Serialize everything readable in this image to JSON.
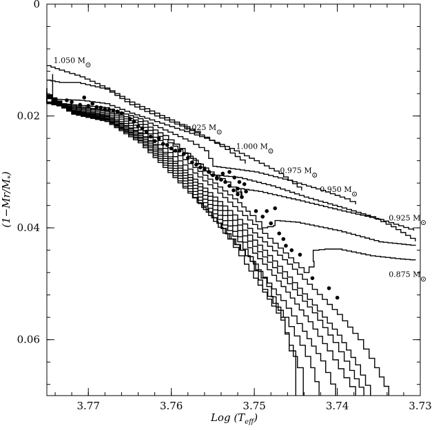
{
  "chart_data": {
    "type": "line",
    "xlabel": "Log  (T",
    "xlabel_sub": "eff",
    "xlabel_close": ")",
    "ylabel": "(1−Mr/M",
    "ylabel_sub": "*",
    "ylabel_close": ")",
    "xlim": [
      3.775,
      3.73
    ],
    "ylim": [
      0,
      0.07
    ],
    "x_major_ticks": [
      3.77,
      3.76,
      3.75,
      3.74,
      3.73
    ],
    "x_tick_labels": [
      "3.77",
      "3.76",
      "3.75",
      "3.74",
      "3.73"
    ],
    "y_major_ticks": [
      0,
      0.02,
      0.04,
      0.06
    ],
    "y_tick_labels": [
      "0",
      "0.02",
      "0.04",
      "0.06"
    ],
    "grid": false,
    "mass_labels": [
      {
        "text": "1.050 M",
        "x": 3.7742,
        "y": 0.0105
      },
      {
        "text": "1.025 M",
        "x": 3.7584,
        "y": 0.0225
      },
      {
        "text": "1.000 M",
        "x": 3.7522,
        "y": 0.0259
      },
      {
        "text": "0.975 M",
        "x": 3.7469,
        "y": 0.0302
      },
      {
        "text": "0.950 M",
        "x": 3.7421,
        "y": 0.0336
      },
      {
        "text": "0.925 M",
        "x": 3.7338,
        "y": 0.0387
      },
      {
        "text": "0.875 M",
        "x": 3.7338,
        "y": 0.0488
      }
    ],
    "series": [
      {
        "values": [
          [
            3.775,
            0.011
          ],
          [
            3.7735,
            0.0118
          ],
          [
            3.771,
            0.013
          ],
          [
            3.768,
            0.015
          ],
          [
            3.765,
            0.0175
          ],
          [
            3.762,
            0.0195
          ],
          [
            3.759,
            0.0215
          ],
          [
            3.7565,
            0.0232
          ]
        ]
      },
      {
        "values": [
          [
            3.775,
            0.0136
          ],
          [
            3.7735,
            0.014
          ],
          [
            3.7715,
            0.014
          ],
          [
            3.768,
            0.0152
          ],
          [
            3.765,
            0.018
          ],
          [
            3.762,
            0.02
          ],
          [
            3.759,
            0.0218
          ],
          [
            3.756,
            0.0238
          ],
          [
            3.7535,
            0.026
          ],
          [
            3.7511,
            0.0285
          ]
        ]
      },
      {
        "values": [
          [
            3.7743,
            0.0125
          ],
          [
            3.7743,
            0.017
          ],
          [
            3.771,
            0.0172
          ],
          [
            3.768,
            0.0178
          ],
          [
            3.765,
            0.0195
          ],
          [
            3.762,
            0.021
          ],
          [
            3.759,
            0.0225
          ],
          [
            3.756,
            0.024
          ],
          [
            3.753,
            0.0258
          ],
          [
            3.75,
            0.028
          ],
          [
            3.747,
            0.0303
          ],
          [
            3.7443,
            0.0333
          ]
        ]
      },
      {
        "values": [
          [
            3.775,
            0.015
          ],
          [
            3.775,
            0.0175
          ],
          [
            3.772,
            0.018
          ],
          [
            3.768,
            0.0185
          ],
          [
            3.764,
            0.0205
          ],
          [
            3.761,
            0.0225
          ],
          [
            3.758,
            0.0245
          ],
          [
            3.756,
            0.0262
          ],
          [
            3.755,
            0.029
          ],
          [
            3.754,
            0.0292
          ],
          [
            3.75,
            0.03
          ],
          [
            3.746,
            0.0315
          ],
          [
            3.742,
            0.0333
          ],
          [
            3.7391,
            0.0348
          ],
          [
            3.7378,
            0.0358
          ]
        ]
      },
      {
        "values": [
          [
            3.775,
            0.015
          ],
          [
            3.775,
            0.0175
          ],
          [
            3.772,
            0.0182
          ],
          [
            3.768,
            0.019
          ],
          [
            3.764,
            0.021
          ],
          [
            3.761,
            0.0235
          ],
          [
            3.759,
            0.0258
          ],
          [
            3.757,
            0.0285
          ],
          [
            3.7553,
            0.0305
          ],
          [
            3.752,
            0.031
          ],
          [
            3.748,
            0.0325
          ],
          [
            3.744,
            0.0345
          ],
          [
            3.74,
            0.0362
          ],
          [
            3.736,
            0.038
          ],
          [
            3.7335,
            0.0398
          ],
          [
            3.7306,
            0.0424
          ]
        ]
      },
      {
        "values": [
          [
            3.775,
            0.0155
          ],
          [
            3.775,
            0.0176
          ],
          [
            3.772,
            0.0184
          ],
          [
            3.768,
            0.0192
          ],
          [
            3.764,
            0.0215
          ],
          [
            3.761,
            0.0242
          ],
          [
            3.758,
            0.0272
          ],
          [
            3.7555,
            0.03
          ],
          [
            3.7535,
            0.0318
          ],
          [
            3.7515,
            0.0345
          ],
          [
            3.7516,
            0.033
          ],
          [
            3.7518,
            0.033
          ],
          [
            3.7495,
            0.0335
          ],
          [
            3.745,
            0.035
          ],
          [
            3.74,
            0.0368
          ],
          [
            3.735,
            0.0385
          ],
          [
            3.7308,
            0.0405
          ]
        ]
      },
      {
        "values": [
          [
            3.775,
            0.0158
          ],
          [
            3.775,
            0.0177
          ],
          [
            3.772,
            0.0186
          ],
          [
            3.768,
            0.0195
          ],
          [
            3.764,
            0.022
          ],
          [
            3.761,
            0.025
          ],
          [
            3.758,
            0.0285
          ],
          [
            3.755,
            0.032
          ],
          [
            3.752,
            0.0355
          ],
          [
            3.7505,
            0.0378
          ],
          [
            3.7491,
            0.04
          ],
          [
            3.7477,
            0.0396
          ],
          [
            3.7475,
            0.0387
          ],
          [
            3.745,
            0.039
          ],
          [
            3.74,
            0.0405
          ],
          [
            3.735,
            0.0425
          ],
          [
            3.7306,
            0.0432
          ]
        ]
      },
      {
        "values": [
          [
            3.775,
            0.016
          ],
          [
            3.775,
            0.0178
          ],
          [
            3.772,
            0.0188
          ],
          [
            3.768,
            0.0198
          ],
          [
            3.764,
            0.0225
          ],
          [
            3.761,
            0.0258
          ],
          [
            3.758,
            0.0295
          ],
          [
            3.755,
            0.033
          ],
          [
            3.752,
            0.037
          ],
          [
            3.749,
            0.041
          ],
          [
            3.7465,
            0.0445
          ],
          [
            3.744,
            0.048
          ],
          [
            3.7428,
            0.046
          ],
          [
            3.7429,
            0.044
          ],
          [
            3.7415,
            0.0438
          ],
          [
            3.74,
            0.0438
          ],
          [
            3.736,
            0.045
          ],
          [
            3.733,
            0.0455
          ],
          [
            3.7306,
            0.0458
          ]
        ]
      },
      {
        "values": [
          [
            3.775,
            0.0162
          ],
          [
            3.772,
            0.019
          ],
          [
            3.768,
            0.02
          ],
          [
            3.764,
            0.023
          ],
          [
            3.761,
            0.0265
          ],
          [
            3.758,
            0.0305
          ],
          [
            3.755,
            0.0345
          ],
          [
            3.752,
            0.0385
          ],
          [
            3.749,
            0.0425
          ],
          [
            3.746,
            0.0465
          ],
          [
            3.743,
            0.051
          ],
          [
            3.74,
            0.0555
          ],
          [
            3.7375,
            0.06
          ],
          [
            3.7355,
            0.065
          ],
          [
            3.7338,
            0.07
          ]
        ]
      },
      {
        "values": [
          [
            3.775,
            0.0163
          ],
          [
            3.772,
            0.0191
          ],
          [
            3.768,
            0.0201
          ],
          [
            3.764,
            0.0232
          ],
          [
            3.761,
            0.0268
          ],
          [
            3.758,
            0.031
          ],
          [
            3.755,
            0.0352
          ],
          [
            3.752,
            0.0395
          ],
          [
            3.749,
            0.044
          ],
          [
            3.746,
            0.0488
          ],
          [
            3.743,
            0.0538
          ],
          [
            3.74,
            0.0592
          ],
          [
            3.7378,
            0.0645
          ],
          [
            3.736,
            0.07
          ]
        ]
      },
      {
        "values": [
          [
            3.775,
            0.0164
          ],
          [
            3.772,
            0.0192
          ],
          [
            3.768,
            0.0203
          ],
          [
            3.764,
            0.0235
          ],
          [
            3.761,
            0.0272
          ],
          [
            3.758,
            0.0315
          ],
          [
            3.755,
            0.036
          ],
          [
            3.752,
            0.0405
          ],
          [
            3.749,
            0.0452
          ],
          [
            3.746,
            0.05
          ],
          [
            3.743,
            0.0552
          ],
          [
            3.7405,
            0.0605
          ],
          [
            3.7385,
            0.0655
          ],
          [
            3.7368,
            0.07
          ]
        ]
      },
      {
        "values": [
          [
            3.775,
            0.0165
          ],
          [
            3.772,
            0.0193
          ],
          [
            3.768,
            0.0205
          ],
          [
            3.764,
            0.0238
          ],
          [
            3.761,
            0.0276
          ],
          [
            3.758,
            0.032
          ],
          [
            3.755,
            0.0368
          ],
          [
            3.752,
            0.0416
          ],
          [
            3.749,
            0.0465
          ],
          [
            3.7462,
            0.0515
          ],
          [
            3.7435,
            0.0568
          ],
          [
            3.7412,
            0.062
          ],
          [
            3.7392,
            0.0668
          ],
          [
            3.7378,
            0.07
          ]
        ]
      },
      {
        "values": [
          [
            3.775,
            0.0166
          ],
          [
            3.772,
            0.0194
          ],
          [
            3.768,
            0.0206
          ],
          [
            3.764,
            0.024
          ],
          [
            3.761,
            0.028
          ],
          [
            3.758,
            0.0325
          ],
          [
            3.755,
            0.0375
          ],
          [
            3.752,
            0.0425
          ],
          [
            3.7495,
            0.0478
          ],
          [
            3.7468,
            0.053
          ],
          [
            3.7442,
            0.0585
          ],
          [
            3.742,
            0.0638
          ],
          [
            3.7402,
            0.07
          ]
        ]
      },
      {
        "values": [
          [
            3.775,
            0.0167
          ],
          [
            3.772,
            0.0195
          ],
          [
            3.768,
            0.0207
          ],
          [
            3.764,
            0.0243
          ],
          [
            3.761,
            0.0284
          ],
          [
            3.758,
            0.033
          ],
          [
            3.755,
            0.0382
          ],
          [
            3.7528,
            0.042
          ],
          [
            3.7505,
            0.046
          ],
          [
            3.749,
            0.051
          ],
          [
            3.7465,
            0.056
          ],
          [
            3.7445,
            0.061
          ],
          [
            3.7432,
            0.065
          ],
          [
            3.7422,
            0.07
          ]
        ]
      },
      {
        "values": [
          [
            3.775,
            0.0168
          ],
          [
            3.772,
            0.0196
          ],
          [
            3.768,
            0.0208
          ],
          [
            3.764,
            0.0245
          ],
          [
            3.761,
            0.0288
          ],
          [
            3.758,
            0.0335
          ],
          [
            3.7555,
            0.0378
          ],
          [
            3.7532,
            0.042
          ],
          [
            3.7512,
            0.0465
          ],
          [
            3.749,
            0.0515
          ],
          [
            3.7468,
            0.0565
          ],
          [
            3.7458,
            0.061
          ],
          [
            3.7448,
            0.065
          ],
          [
            3.7441,
            0.07
          ]
        ]
      },
      {
        "values": [
          [
            3.775,
            0.0169
          ],
          [
            3.772,
            0.0197
          ],
          [
            3.768,
            0.021
          ],
          [
            3.764,
            0.0248
          ],
          [
            3.761,
            0.0292
          ],
          [
            3.758,
            0.0338
          ],
          [
            3.7558,
            0.0372
          ],
          [
            3.7545,
            0.0392
          ],
          [
            3.753,
            0.042
          ],
          [
            3.7505,
            0.046
          ],
          [
            3.7485,
            0.0505
          ],
          [
            3.7468,
            0.056
          ],
          [
            3.7458,
            0.062
          ],
          [
            3.745,
            0.07
          ]
        ]
      }
    ],
    "points": [
      [
        3.7726,
        0.0172
      ],
      [
        3.772,
        0.0175
      ],
      [
        3.771,
        0.018
      ],
      [
        3.7705,
        0.0167
      ],
      [
        3.77,
        0.0182
      ],
      [
        3.7695,
        0.0178
      ],
      [
        3.769,
        0.0184
      ],
      [
        3.7685,
        0.0185
      ],
      [
        3.768,
        0.0188
      ],
      [
        3.7675,
        0.0189
      ],
      [
        3.767,
        0.019
      ],
      [
        3.7665,
        0.0192
      ],
      [
        3.766,
        0.0195
      ],
      [
        3.765,
        0.0205
      ],
      [
        3.7645,
        0.021
      ],
      [
        3.764,
        0.0218
      ],
      [
        3.7635,
        0.0222
      ],
      [
        3.763,
        0.0228
      ],
      [
        3.7625,
        0.0237
      ],
      [
        3.762,
        0.0245
      ],
      [
        3.7615,
        0.024
      ],
      [
        3.761,
        0.025
      ],
      [
        3.7605,
        0.0252
      ],
      [
        3.76,
        0.0258
      ],
      [
        3.7595,
        0.0262
      ],
      [
        3.759,
        0.0262
      ],
      [
        3.7585,
        0.0268
      ],
      [
        3.758,
        0.0275
      ],
      [
        3.7575,
        0.0283
      ],
      [
        3.757,
        0.0287
      ],
      [
        3.7565,
        0.0292
      ],
      [
        3.756,
        0.0296
      ],
      [
        3.7555,
        0.03
      ],
      [
        3.755,
        0.0306
      ],
      [
        3.7545,
        0.031
      ],
      [
        3.754,
        0.0314
      ],
      [
        3.7535,
        0.0318
      ],
      [
        3.753,
        0.0325
      ],
      [
        3.7525,
        0.0333
      ],
      [
        3.752,
        0.034
      ],
      [
        3.7515,
        0.0345
      ],
      [
        3.7538,
        0.0303
      ],
      [
        3.753,
        0.03
      ],
      [
        3.7524,
        0.031
      ],
      [
        3.7518,
        0.0318
      ],
      [
        3.7512,
        0.0322
      ],
      [
        3.7545,
        0.0312
      ],
      [
        3.752,
        0.033
      ],
      [
        3.751,
        0.0335
      ],
      [
        3.7498,
        0.037
      ],
      [
        3.749,
        0.038
      ],
      [
        3.7485,
        0.037
      ],
      [
        3.748,
        0.0392
      ],
      [
        3.7475,
        0.0365
      ],
      [
        3.747,
        0.041
      ],
      [
        3.7465,
        0.042
      ],
      [
        3.7462,
        0.0432
      ],
      [
        3.7455,
        0.044
      ],
      [
        3.7445,
        0.0448
      ],
      [
        3.743,
        0.049
      ],
      [
        3.741,
        0.0508
      ],
      [
        3.74,
        0.0525
      ]
    ]
  }
}
